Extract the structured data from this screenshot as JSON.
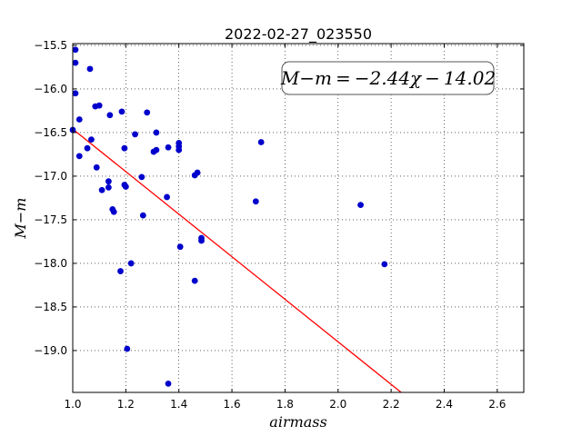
{
  "chart_data": {
    "type": "scatter",
    "title": "2022-02-27_023550",
    "xlabel": "airmass",
    "ylabel": "M−m",
    "xlim": [
      1.0,
      2.7
    ],
    "ylim": [
      -19.48,
      -15.48
    ],
    "y_inverted": true,
    "grid": true,
    "x_ticks": [
      1.0,
      1.2,
      1.4,
      1.6,
      1.8,
      2.0,
      2.2,
      2.4,
      2.6
    ],
    "x_tick_labels": [
      "1.0",
      "1.2",
      "1.4",
      "1.6",
      "1.8",
      "2.0",
      "2.2",
      "2.4",
      "2.6"
    ],
    "y_ticks": [
      -15.5,
      -16.0,
      -16.5,
      -17.0,
      -17.5,
      -18.0,
      -18.5,
      -19.0
    ],
    "y_tick_labels": [
      "−15.5",
      "−16.0",
      "−16.5",
      "−17.0",
      "−17.5",
      "−18.0",
      "−18.5",
      "−19.0"
    ],
    "annotation": "M−m = −2.44χ − 14.02",
    "fit": {
      "slope": -2.44,
      "intercept": -14.02,
      "color": "#ff0000"
    },
    "point_color": "#0000cc",
    "points": [
      [
        1.01,
        -15.55
      ],
      [
        1.01,
        -15.7
      ],
      [
        1.01,
        -16.05
      ],
      [
        1.0,
        -16.47
      ],
      [
        1.025,
        -16.35
      ],
      [
        1.025,
        -16.77
      ],
      [
        1.055,
        -16.68
      ],
      [
        1.065,
        -15.77
      ],
      [
        1.07,
        -16.58
      ],
      [
        1.085,
        -16.2
      ],
      [
        1.09,
        -16.9
      ],
      [
        1.1,
        -16.19
      ],
      [
        1.11,
        -17.16
      ],
      [
        1.135,
        -17.06
      ],
      [
        1.135,
        -17.13
      ],
      [
        1.14,
        -16.3
      ],
      [
        1.15,
        -17.38
      ],
      [
        1.155,
        -17.41
      ],
      [
        1.18,
        -18.09
      ],
      [
        1.185,
        -16.26
      ],
      [
        1.195,
        -16.68
      ],
      [
        1.195,
        -17.1
      ],
      [
        1.2,
        -17.12
      ],
      [
        1.205,
        -18.98
      ],
      [
        1.22,
        -18.0
      ],
      [
        1.235,
        -16.52
      ],
      [
        1.26,
        -17.01
      ],
      [
        1.265,
        -17.45
      ],
      [
        1.28,
        -16.27
      ],
      [
        1.305,
        -16.72
      ],
      [
        1.315,
        -16.5
      ],
      [
        1.315,
        -16.7
      ],
      [
        1.355,
        -17.24
      ],
      [
        1.36,
        -16.67
      ],
      [
        1.36,
        -19.38
      ],
      [
        1.4,
        -16.62
      ],
      [
        1.4,
        -16.66
      ],
      [
        1.4,
        -16.7
      ],
      [
        1.405,
        -17.81
      ],
      [
        1.46,
        -16.99
      ],
      [
        1.46,
        -18.2
      ],
      [
        1.47,
        -16.96
      ],
      [
        1.485,
        -17.71
      ],
      [
        1.485,
        -17.74
      ],
      [
        1.69,
        -17.29
      ],
      [
        1.71,
        -16.61
      ],
      [
        2.085,
        -17.33
      ],
      [
        2.175,
        -18.01
      ]
    ]
  }
}
